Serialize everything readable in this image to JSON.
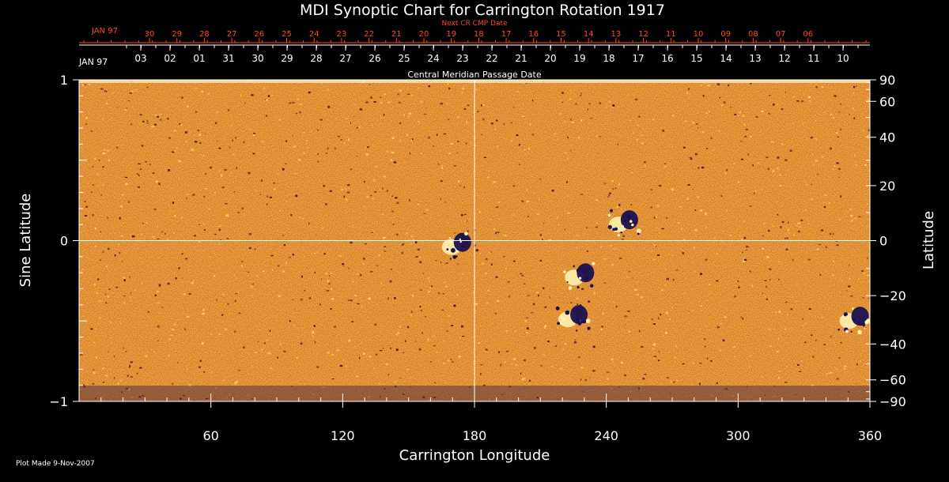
{
  "chart_data": {
    "type": "heatmap",
    "title": "MDI Synoptic Chart for Carrington Rotation 1917",
    "xlabel": "Carrington Longitude",
    "ylabel_left": "Sine Latitude",
    "ylabel_right": "Latitude",
    "xlim": [
      0,
      360
    ],
    "ylim": [
      -1,
      1
    ],
    "x_ticks": [
      60,
      120,
      180,
      240,
      300,
      360
    ],
    "y_ticks_left": [
      {
        "value": 1,
        "label": "1"
      },
      {
        "value": 0,
        "label": "0"
      },
      {
        "value": -1,
        "label": "−1"
      }
    ],
    "y_ticks_right": [
      {
        "deg": 90,
        "label": "90"
      },
      {
        "deg": 60,
        "label": "60"
      },
      {
        "deg": 40,
        "label": "40"
      },
      {
        "deg": 20,
        "label": "20"
      },
      {
        "deg": 0,
        "label": "0"
      },
      {
        "deg": -20,
        "label": "−20"
      },
      {
        "deg": -40,
        "label": "−40"
      },
      {
        "deg": -60,
        "label": "−60"
      },
      {
        "deg": -90,
        "label": "−90"
      }
    ],
    "crosshair": {
      "longitude": 180,
      "sine_latitude": 0
    },
    "next_cr_axis": {
      "label": "Next CR CMP Date",
      "month_label": "JAN 97",
      "dates": [
        "30",
        "29",
        "28",
        "27",
        "26",
        "25",
        "24",
        "23",
        "22",
        "21",
        "20",
        "19",
        "18",
        "17",
        "16",
        "15",
        "14",
        "13",
        "12",
        "11",
        "10",
        "09",
        "08",
        "07",
        "06"
      ]
    },
    "cmp_axis": {
      "label": "Central Meridian Passage Date",
      "month_label": "JAN 97",
      "dates": [
        "03",
        "02",
        "01",
        "31",
        "30",
        "29",
        "28",
        "27",
        "26",
        "25",
        "24",
        "23",
        "22",
        "21",
        "20",
        "19",
        "18",
        "17",
        "16",
        "15",
        "14",
        "13",
        "12",
        "11",
        "10"
      ]
    },
    "colors": {
      "background_field": "#f04a10",
      "positive_flux": "#fff2b0",
      "negative_flux": "#1a1050",
      "axis_text": "#ffffff",
      "next_cr_text": "#ff4a1c"
    },
    "active_regions": [
      {
        "longitude": 172,
        "sine_latitude": -0.03,
        "polarity": "bipolar"
      },
      {
        "longitude": 248,
        "sine_latitude": 0.11,
        "polarity": "bipolar"
      },
      {
        "longitude": 228,
        "sine_latitude": -0.22,
        "polarity": "bipolar"
      },
      {
        "longitude": 225,
        "sine_latitude": -0.48,
        "polarity": "bipolar"
      },
      {
        "longitude": 353,
        "sine_latitude": -0.49,
        "polarity": "bipolar"
      }
    ]
  },
  "footer": {
    "plot_made": "Plot Made  9-Nov-2007"
  }
}
